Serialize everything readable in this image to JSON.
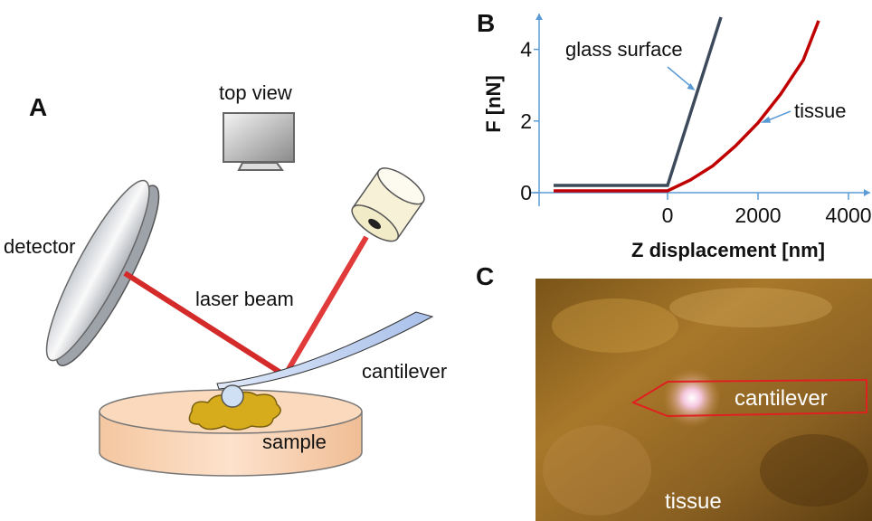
{
  "panel_a": {
    "label": "A",
    "top_view": "top view",
    "detector": "detector",
    "laser_beam": "laser beam",
    "cantilever": "cantilever",
    "sample": "sample"
  },
  "chart_data": {
    "type": "line",
    "panel_label": "B",
    "x_label": "Z displacement [nm]",
    "y_label": "F [nN]",
    "xlim": [
      -3060,
      4480
    ],
    "ylim": [
      -0.38,
      5
    ],
    "xticks": [
      0,
      2000,
      4000
    ],
    "yticks": [
      0,
      2,
      4
    ],
    "axis_color": "#5b9bd5",
    "series": [
      {
        "name": "glass surface",
        "color": "#3d4a5c",
        "x": [
          -2520,
          0,
          1180
        ],
        "values": [
          0.2,
          0.2,
          4.9
        ]
      },
      {
        "name": "tissue",
        "color": "#c00000",
        "x": [
          -2520,
          0,
          500,
          1000,
          1500,
          2000,
          2500,
          3000,
          3340
        ],
        "values": [
          0.05,
          0.05,
          0.35,
          0.75,
          1.3,
          1.95,
          2.75,
          3.7,
          4.8
        ]
      }
    ]
  },
  "panel_c": {
    "label": "C",
    "cantilever": "cantilever",
    "tissue": "tissue"
  }
}
